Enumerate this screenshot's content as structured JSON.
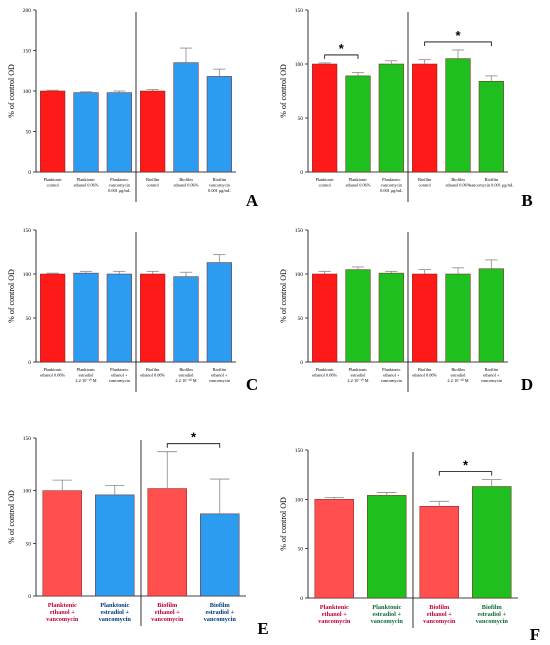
{
  "colors": {
    "red": "#ff1a1a",
    "blue": "#2b9cf0",
    "green": "#1fbf1f",
    "coral": "#ff4f4f",
    "axis": "#000000",
    "error": "#888888",
    "errorCyan": "#33d1c4",
    "labelRed": "#c0003a",
    "labelGreen": "#0f6b3a",
    "labelBlue": "#003a7a"
  },
  "chart_data": [
    {
      "id": "A",
      "type": "bar",
      "panel_label": "A",
      "ylabel": "% of control OD",
      "ylim": [
        0,
        200
      ],
      "yticks": [
        "0",
        "50",
        "100",
        "150",
        "200"
      ],
      "divider_after": 3,
      "categories": [
        [
          "Planktonic",
          "control"
        ],
        [
          "Planktonic",
          "ethanol 0.06%"
        ],
        [
          "Planktonic",
          "vancomycin",
          "0.001 μg/mL"
        ],
        [
          "Biofilm",
          "control"
        ],
        [
          "Biofilm",
          "ethanol 0.06%"
        ],
        [
          "Biofilm",
          "vancomycin",
          "0.001 μg/mL"
        ]
      ],
      "values": [
        100,
        98,
        98,
        100,
        135,
        118
      ],
      "errors": [
        1,
        1,
        2,
        2,
        18,
        9
      ],
      "bar_colors": [
        "red",
        "blue",
        "blue",
        "red",
        "blue",
        "blue"
      ],
      "significance": []
    },
    {
      "id": "B",
      "type": "bar",
      "panel_label": "B",
      "ylabel": "% of control OD",
      "ylim": [
        0,
        150
      ],
      "yticks": [
        "0",
        "50",
        "100",
        "150"
      ],
      "divider_after": 3,
      "categories": [
        [
          "Planktonic",
          "control"
        ],
        [
          "Planktonic",
          "ethanol 0.06%"
        ],
        [
          "Planktonic",
          "vancomycin",
          "0.001 μg/mL"
        ],
        [
          "Biofilm",
          "control"
        ],
        [
          "Biofilm",
          "ethanol 0.06%"
        ],
        [
          "Biofilm",
          "vancomycin 0.001 μg/mL"
        ]
      ],
      "values": [
        100,
        89,
        100,
        100,
        105,
        84
      ],
      "errors": [
        1,
        3,
        3,
        4,
        8,
        5
      ],
      "bar_colors": [
        "red",
        "green",
        "green",
        "red",
        "green",
        "green"
      ],
      "significance": [
        {
          "from": 0,
          "to": 1,
          "label": "*"
        },
        {
          "from": 3,
          "to": 5,
          "label": "*"
        }
      ]
    },
    {
      "id": "C",
      "type": "bar",
      "panel_label": "C",
      "ylabel": "% of control OD",
      "ylim": [
        0,
        150
      ],
      "yticks": [
        "0",
        "50",
        "100",
        "150"
      ],
      "divider_after": 3,
      "categories": [
        [
          "Planktonic",
          "ethanol 0.06%"
        ],
        [
          "Planktonic",
          "estradiol",
          "2.2·10⁻¹⁰ M"
        ],
        [
          "Planktonic",
          "ethanol +",
          "vancomycin"
        ],
        [
          "Biofilm",
          "ethanol 0.06%"
        ],
        [
          "Biofilm",
          "estradiol",
          "2.2·10⁻¹⁰ M"
        ],
        [
          "Biofilm",
          "ethanol +",
          "vancomycin"
        ]
      ],
      "values": [
        100,
        101,
        100,
        100,
        97,
        113
      ],
      "errors": [
        1,
        2,
        3,
        3,
        5,
        9
      ],
      "bar_colors": [
        "red",
        "blue",
        "blue",
        "red",
        "blue",
        "blue"
      ],
      "significance": []
    },
    {
      "id": "D",
      "type": "bar",
      "panel_label": "D",
      "ylabel": "% of control OD",
      "ylim": [
        0,
        150
      ],
      "yticks": [
        "0",
        "50",
        "100",
        "150"
      ],
      "divider_after": 3,
      "categories": [
        [
          "Planktonic",
          "ethanol 0.06%"
        ],
        [
          "Planktonic",
          "estradiol",
          "2.2·10⁻¹⁰ M"
        ],
        [
          "Planktonic",
          "ethanol +",
          "vancomycin"
        ],
        [
          "Biofilm",
          "ethanol 0.06%"
        ],
        [
          "Biofilm",
          "estradiol",
          "2.2·10⁻¹⁰ M"
        ],
        [
          "Biofilm",
          "ethanol +",
          "vancomycin"
        ]
      ],
      "values": [
        100,
        105,
        101,
        100,
        100,
        106
      ],
      "errors": [
        3,
        3,
        2,
        5,
        7,
        10
      ],
      "bar_colors": [
        "red",
        "green",
        "green",
        "red",
        "green",
        "green"
      ],
      "significance": []
    },
    {
      "id": "E",
      "type": "bar",
      "panel_label": "E",
      "ylabel": "% of control OD",
      "ylim": [
        0,
        150
      ],
      "yticks": [
        "0",
        "50",
        "100",
        "150"
      ],
      "divider_after": 2,
      "categories": [
        [
          "Planktonic",
          "ethanol +",
          "vancomycin"
        ],
        [
          "Planktonic",
          "estradiol +",
          "vancomycin"
        ],
        [
          "Biofilm",
          "ethanol +",
          "vancomycin"
        ],
        [
          "Biofilm",
          "estradiol +",
          "vancomycin"
        ]
      ],
      "values": [
        100,
        96,
        102,
        78
      ],
      "errors": [
        10,
        9,
        35,
        33
      ],
      "bar_colors": [
        "coral",
        "blue",
        "coral",
        "blue"
      ],
      "label_colors": [
        "labelRed",
        "labelBlue",
        "labelRed",
        "labelBlue"
      ],
      "significance": [
        {
          "from": 2,
          "to": 3,
          "label": "*"
        }
      ]
    },
    {
      "id": "F",
      "type": "bar",
      "panel_label": "F",
      "ylabel": "% of control OD",
      "ylim": [
        0,
        150
      ],
      "yticks": [
        "0",
        "50",
        "100",
        "150"
      ],
      "divider_after": 2,
      "categories": [
        [
          "Planktonic",
          "ethanol +",
          "vancomycin"
        ],
        [
          "Planktonic",
          "estradiol +",
          "vancomycin"
        ],
        [
          "Biofilm",
          "ethanol +",
          "vancomycin"
        ],
        [
          "Biofilm",
          "estradiol +",
          "vancomycin"
        ]
      ],
      "values": [
        100,
        104,
        93,
        113
      ],
      "errors": [
        2,
        3,
        5,
        7
      ],
      "bar_colors": [
        "coral",
        "green",
        "coral",
        "green"
      ],
      "label_colors": [
        "labelRed",
        "labelGreen",
        "labelRed",
        "labelGreen"
      ],
      "significance": [
        {
          "from": 2,
          "to": 3,
          "label": "*"
        }
      ]
    }
  ]
}
